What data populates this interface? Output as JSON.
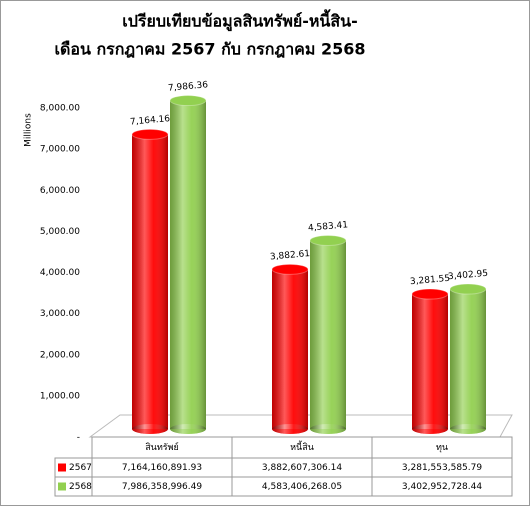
{
  "chart_data": {
    "type": "bar3d",
    "title_lines": [
      "เปรียบเทียบข้อมูลสินทรัพย์-หนี้สิน-",
      "เดือน กรกฎาคม 2567 กับ กรกฎาคม 2568"
    ],
    "y_label": "Millions",
    "categories": [
      "สินทรัพย์",
      "หนี้สิน",
      "ทุน"
    ],
    "series": [
      {
        "name": "2567",
        "color": "#ff0000",
        "values": [
          7164.16,
          3882.61,
          3281.55
        ],
        "value_labels": [
          "7,164.16",
          "3,882.61",
          "3,281.55"
        ],
        "table_values": [
          "7,164,160,891.93",
          "3,882,607,306.14",
          "3,281,553,585.79"
        ]
      },
      {
        "name": "2568",
        "color": "#92d050",
        "values": [
          7986.36,
          4583.41,
          3402.95
        ],
        "value_labels": [
          "7,986.36",
          "4,583.41",
          "3,402.95"
        ],
        "table_values": [
          "7,986,358,996.49",
          "4,583,406,268.05",
          "3,402,952,728.44"
        ]
      }
    ],
    "ylim": [
      0,
      8000
    ],
    "yticks": [
      {
        "value": 0,
        "label": "-"
      },
      {
        "value": 1000,
        "label": "1,000.00"
      },
      {
        "value": 2000,
        "label": "2,000.00"
      },
      {
        "value": 3000,
        "label": "3,000.00"
      },
      {
        "value": 4000,
        "label": "4,000.00"
      },
      {
        "value": 5000,
        "label": "5,000.00"
      },
      {
        "value": 6000,
        "label": "6,000.00"
      },
      {
        "value": 7000,
        "label": "7,000.00"
      },
      {
        "value": 8000,
        "label": "8,000.00"
      }
    ]
  }
}
